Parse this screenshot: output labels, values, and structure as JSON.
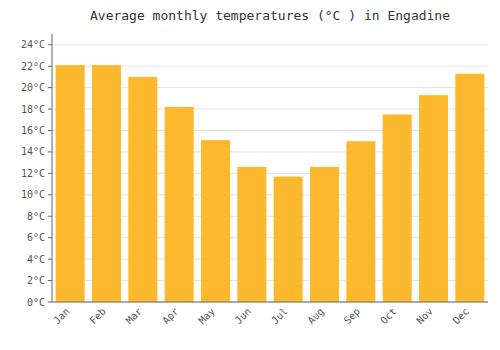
{
  "chart_data": {
    "type": "bar",
    "title": "Average monthly temperatures (°C ) in Engadine",
    "categories": [
      "Jan",
      "Feb",
      "Mar",
      "Apr",
      "May",
      "Jun",
      "Jul",
      "Aug",
      "Sep",
      "Oct",
      "Nov",
      "Dec"
    ],
    "values": [
      22.1,
      22.1,
      21.0,
      18.2,
      15.1,
      12.6,
      11.7,
      12.6,
      15.0,
      17.5,
      19.3,
      21.3
    ],
    "color": "#FDB92E",
    "ylim": [
      0,
      25
    ],
    "yticks": [
      {
        "value": 0,
        "label": "0°C"
      },
      {
        "value": 2,
        "label": "2°C"
      },
      {
        "value": 4,
        "label": "4°C"
      },
      {
        "value": 6,
        "label": "6°C"
      },
      {
        "value": 8,
        "label": "8°C"
      },
      {
        "value": 10,
        "label": "10°C"
      },
      {
        "value": 12,
        "label": "12°C"
      },
      {
        "value": 14,
        "label": "14°C"
      },
      {
        "value": 16,
        "label": "16°C"
      },
      {
        "value": 18,
        "label": "18°C"
      },
      {
        "value": 20,
        "label": "20°C"
      },
      {
        "value": 22,
        "label": "22°C"
      },
      {
        "value": 24,
        "label": "24°C"
      }
    ],
    "grid": true
  }
}
